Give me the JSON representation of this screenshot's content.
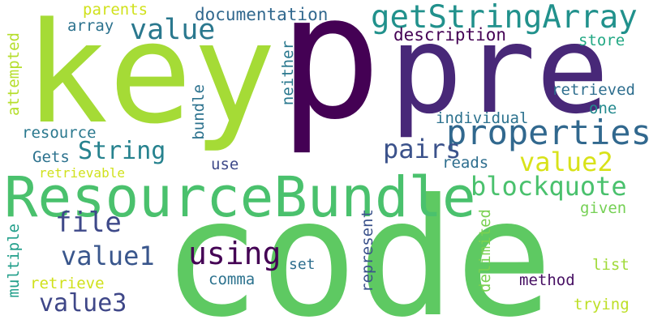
{
  "words": [
    {
      "text": "p",
      "color": "#440154"
    },
    {
      "text": "key",
      "color": "#a5db36"
    },
    {
      "text": "code",
      "color": "#5ec962"
    },
    {
      "text": "pre",
      "color": "#482878"
    },
    {
      "text": "ResourceBundle",
      "color": "#4ac16d"
    },
    {
      "text": "properties",
      "color": "#31688e"
    },
    {
      "text": "getStringArray",
      "color": "#21918c"
    },
    {
      "text": "value",
      "color": "#2a788e"
    },
    {
      "text": "String",
      "color": "#26828e"
    },
    {
      "text": "pairs",
      "color": "#3b528b"
    },
    {
      "text": "file",
      "color": "#3e4989"
    },
    {
      "text": "value1",
      "color": "#39568c"
    },
    {
      "text": "value2",
      "color": "#d8e219"
    },
    {
      "text": "value3",
      "color": "#3f4788"
    },
    {
      "text": "using",
      "color": "#440154"
    },
    {
      "text": "blockquote",
      "color": "#4ac16d"
    },
    {
      "text": "documentation",
      "color": "#31688e"
    },
    {
      "text": "description",
      "color": "#440154"
    },
    {
      "text": "parents",
      "color": "#d0e11c"
    },
    {
      "text": "array",
      "color": "#2c728e"
    },
    {
      "text": "store",
      "color": "#22a884"
    },
    {
      "text": "retrieved",
      "color": "#2e6e8e"
    },
    {
      "text": "one",
      "color": "#23898e"
    },
    {
      "text": "individual",
      "color": "#2c728e"
    },
    {
      "text": "resource",
      "color": "#2a788e"
    },
    {
      "text": "Gets",
      "color": "#2c728e"
    },
    {
      "text": "retrievable",
      "color": "#d0e11c"
    },
    {
      "text": "use",
      "color": "#3e4989"
    },
    {
      "text": "reads",
      "color": "#2e6e8e"
    },
    {
      "text": "given",
      "color": "#75d054"
    },
    {
      "text": "list",
      "color": "#a0da39"
    },
    {
      "text": "method",
      "color": "#471063"
    },
    {
      "text": "trying",
      "color": "#bddf26"
    },
    {
      "text": "comma",
      "color": "#2c728e"
    },
    {
      "text": "set",
      "color": "#2e6e8e"
    },
    {
      "text": "retrieve",
      "color": "#d0e11c"
    },
    {
      "text": "attempted",
      "color": "#b5de2b"
    },
    {
      "text": "multiple",
      "color": "#1f9e89"
    },
    {
      "text": "neither",
      "color": "#2a788e"
    },
    {
      "text": "bundle",
      "color": "#2c728e"
    },
    {
      "text": "represent",
      "color": "#3b528b"
    },
    {
      "text": "delimited",
      "color": "#7ad151"
    }
  ]
}
